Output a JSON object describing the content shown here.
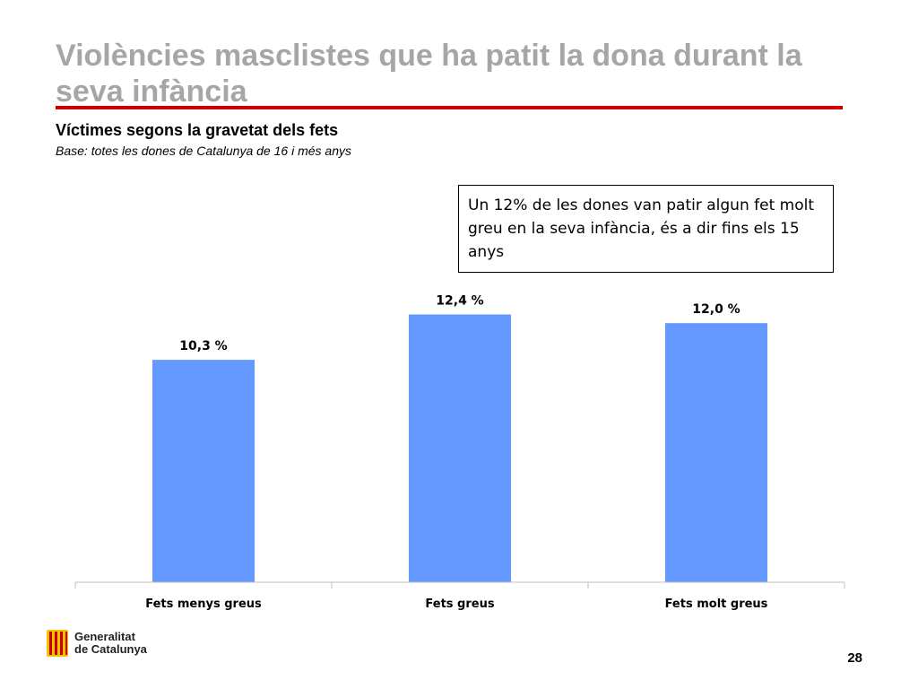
{
  "header": {
    "title": "Violències masclistes que ha patit la dona durant la seva infància",
    "subtitle": "Víctimes segons la gravetat dels fets",
    "base_note": "Base: totes les dones de Catalunya de 16 i més anys"
  },
  "callout": {
    "text": "Un 12% de les dones van patir algun fet molt greu en la seva infància, és a dir fins els 15 anys"
  },
  "chart_data": {
    "type": "bar",
    "categories": [
      "Fets menys greus",
      "Fets greus",
      "Fets molt greus"
    ],
    "values": [
      10.3,
      12.4,
      12.0
    ],
    "data_labels": [
      "10,3 %",
      "12,4 %",
      "12,0 %"
    ],
    "title": "",
    "xlabel": "",
    "ylabel": "",
    "ylim": [
      0,
      14.5
    ],
    "grid": false,
    "legend": "none"
  },
  "colors": {
    "bar": "#6699ff",
    "title_rule": "#cc0000",
    "title_text": "#a6a6a6",
    "logo_red": "#cc0000",
    "logo_gold": "#f3c300"
  },
  "footer": {
    "logo_line1": "Generalitat",
    "logo_line2": "de Catalunya",
    "page_number": "28"
  }
}
